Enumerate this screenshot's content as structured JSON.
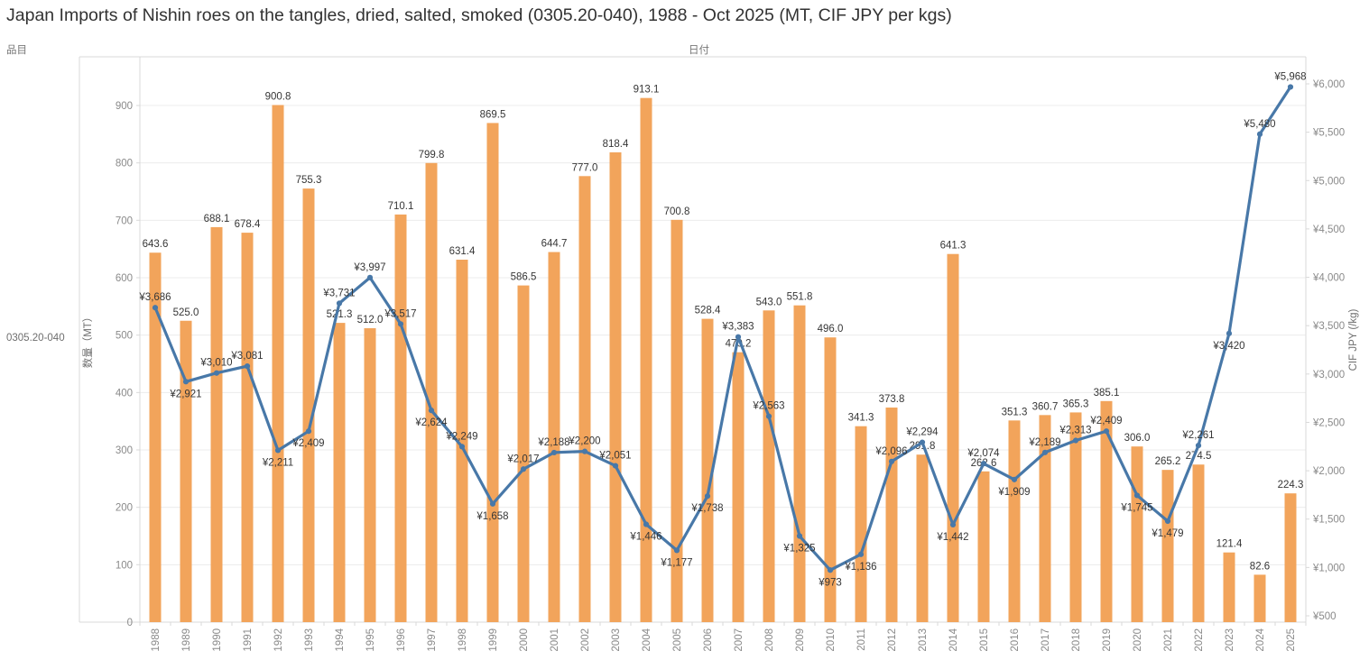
{
  "title": "Japan Imports of Nishin roes on the tangles, dried, salted, smoked (0305.20-040), 1988 - Oct 2025 (MT, CIF JPY per kgs)",
  "header": {
    "item_label": "品目",
    "date_label": "日付"
  },
  "row_label": "0305.20-040",
  "colors": {
    "bar": "#f2a45b",
    "line": "#4878a8",
    "data_label": "#363636",
    "axis_text": "#8a8a8a",
    "axis_title": "#6e6e6e",
    "grid": "#ececec",
    "border": "#d9d9d9"
  },
  "chart_data": {
    "type": "combo",
    "title": "Japan Imports of Nishin roes on the tangles, dried, salted, smoked (0305.20-040), 1988 - Oct 2025 (MT, CIF JPY per kgs)",
    "x_label": "日付",
    "grid": "horizontal",
    "legend": "none",
    "price_prefix": "¥",
    "categories": [
      "1988",
      "1989",
      "1990",
      "1991",
      "1992",
      "1993",
      "1994",
      "1995",
      "1996",
      "1997",
      "1998",
      "1999",
      "2000",
      "2001",
      "2002",
      "2003",
      "2004",
      "2005",
      "2006",
      "2007",
      "2008",
      "2009",
      "2010",
      "2011",
      "2012",
      "2013",
      "2014",
      "2015",
      "2016",
      "2017",
      "2018",
      "2019",
      "2020",
      "2021",
      "2022",
      "2023",
      "2024",
      "2025"
    ],
    "series": [
      {
        "name": "数量 (MT)",
        "type": "bar",
        "axis": "left",
        "values": [
          643.6,
          525.0,
          688.1,
          678.4,
          900.8,
          755.3,
          521.3,
          512.0,
          710.1,
          799.8,
          631.4,
          869.5,
          586.5,
          644.7,
          777.0,
          818.4,
          913.1,
          700.8,
          528.4,
          470.2,
          543.0,
          551.8,
          496.0,
          341.3,
          373.8,
          291.8,
          641.3,
          262.6,
          351.3,
          360.7,
          365.3,
          385.1,
          306.0,
          265.2,
          274.5,
          121.4,
          82.6,
          224.3
        ]
      },
      {
        "name": "CIF JPY (/kg)",
        "type": "line",
        "axis": "right",
        "values": [
          3686,
          2921,
          3010,
          3081,
          2211,
          2409,
          3731,
          3997,
          3517,
          2624,
          2249,
          1658,
          2017,
          2188,
          2200,
          2051,
          1446,
          1177,
          1738,
          3383,
          2563,
          1325,
          973,
          1136,
          2096,
          2294,
          1442,
          2074,
          1909,
          2189,
          2313,
          2409,
          1745,
          1479,
          2261,
          3420,
          5480,
          5968
        ]
      }
    ],
    "y_left": {
      "label": "数量（MT）",
      "ticks": [
        0,
        100,
        200,
        300,
        400,
        500,
        600,
        700,
        800,
        900
      ],
      "range": [
        0,
        985
      ]
    },
    "y_right": {
      "label": "CIF JPY (/kg)",
      "ticks": [
        500,
        1000,
        1500,
        2000,
        2500,
        3000,
        3500,
        4000,
        4500,
        5000,
        5500,
        6000
      ],
      "range": [
        435,
        6285
      ]
    }
  }
}
